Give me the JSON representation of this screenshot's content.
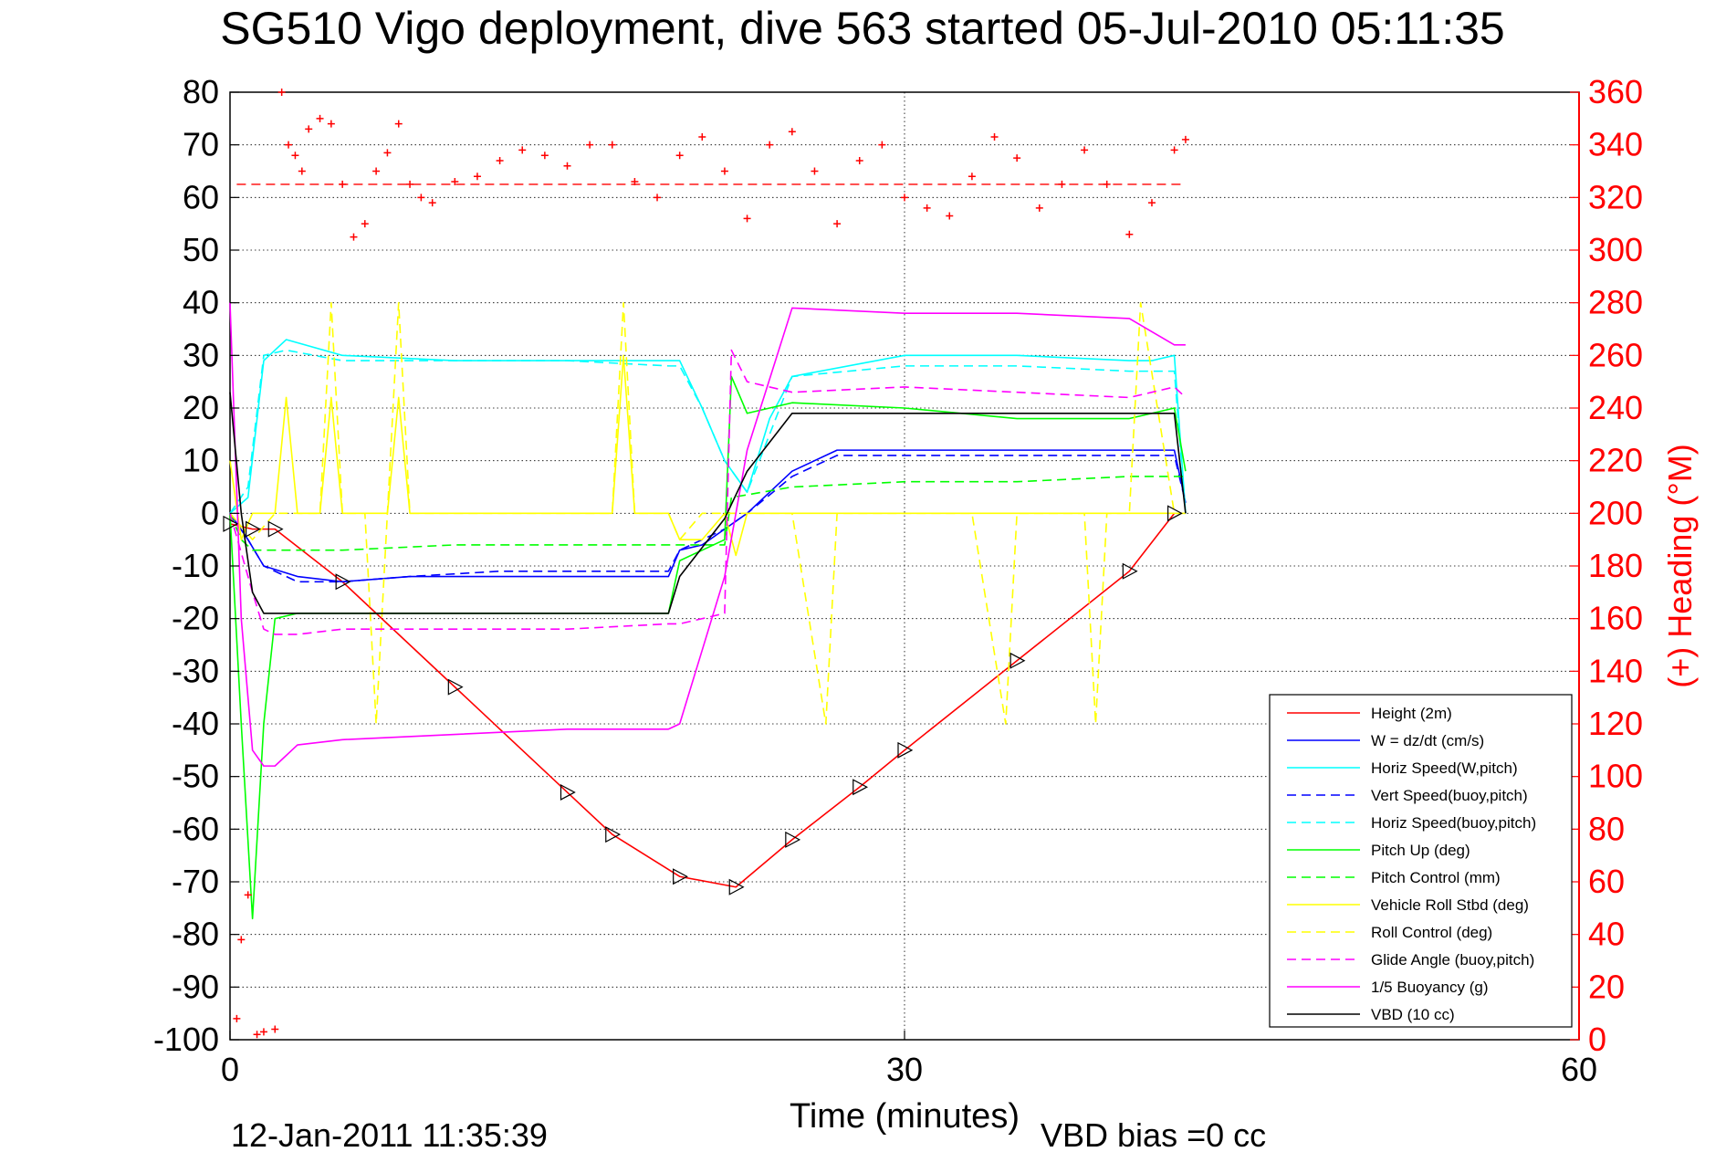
{
  "chart_data": {
    "type": "line",
    "title": "SG510 Vigo deployment, dive 563 started 05-Jul-2010 05:11:35",
    "xlabel": "Time (minutes)",
    "ylabel_right": "(+) Heading (°M)",
    "footer_date": "12-Jan-2011 11:35:39",
    "footer_bias": "VBD bias =0 cc",
    "xlim": [
      0,
      60
    ],
    "ylim_left": [
      -100,
      80
    ],
    "ylim_right": [
      0,
      360
    ],
    "xticks": [
      0,
      30,
      60
    ],
    "yticks_left": [
      80,
      70,
      60,
      50,
      40,
      30,
      20,
      10,
      0,
      -10,
      -20,
      -30,
      -40,
      -50,
      -60,
      -70,
      -80,
      -90,
      -100
    ],
    "yticks_right": [
      360,
      340,
      320,
      300,
      280,
      260,
      240,
      220,
      200,
      180,
      160,
      140,
      120,
      100,
      80,
      60,
      40,
      20,
      0
    ],
    "grid": true,
    "legend_position": "bottom-right",
    "colors": {
      "red": "#ff0000",
      "blue": "#0000ff",
      "cyan": "#00ffff",
      "green": "#00ff00",
      "yellow": "#ffff00",
      "magenta": "#ff00ff",
      "black": "#000000"
    },
    "series": [
      {
        "name": "Height (2m)",
        "color": "#ff0000",
        "dash": false,
        "marker": "triangle",
        "x": [
          0,
          1,
          2,
          5,
          10,
          15,
          17,
          20,
          22.5,
          25,
          28,
          30,
          35,
          40,
          42
        ],
        "y": [
          -2,
          -3,
          -3,
          -13,
          -33,
          -53,
          -61,
          -69,
          -71,
          -62,
          -52,
          -45,
          -28,
          -11,
          0
        ]
      },
      {
        "name": "W = dz/dt (cm/s)",
        "color": "#0000ff",
        "dash": false,
        "x": [
          0,
          0.8,
          1.5,
          3,
          5,
          8,
          12,
          16,
          19.5,
          20,
          21,
          22,
          23,
          25,
          27,
          30,
          33,
          37,
          41,
          42,
          42.5
        ],
        "y": [
          0,
          -5,
          -10,
          -12,
          -13,
          -12,
          -12,
          -12,
          -12,
          -7,
          -6,
          -3,
          0,
          8,
          12,
          12,
          12,
          12,
          12,
          12,
          2
        ]
      },
      {
        "name": "Horiz Speed(W,pitch)",
        "color": "#00ffff",
        "dash": false,
        "x": [
          0,
          0.8,
          1.5,
          2.5,
          5,
          10,
          15,
          19.5,
          20,
          21,
          22,
          23,
          24,
          25,
          30,
          35,
          40,
          41,
          42,
          42.5
        ],
        "y": [
          0,
          3,
          29,
          33,
          30,
          29,
          29,
          29,
          29,
          20,
          10,
          4,
          18,
          26,
          30,
          30,
          29,
          29,
          30,
          0
        ]
      },
      {
        "name": "Vert Speed(buoy,pitch)",
        "color": "#0000ff",
        "dash": true,
        "x": [
          0,
          0.8,
          1.5,
          3,
          5,
          8,
          12,
          16,
          19.5,
          20,
          21,
          22,
          23,
          25,
          27,
          30,
          33,
          37,
          41,
          42,
          42.5
        ],
        "y": [
          0,
          -5,
          -10,
          -13,
          -13,
          -12,
          -11,
          -11,
          -11,
          -7,
          -5,
          -3,
          0,
          7,
          11,
          11,
          11,
          11,
          11,
          11,
          2
        ]
      },
      {
        "name": "Horiz Speed(buoy,pitch)",
        "color": "#00ffff",
        "dash": true,
        "x": [
          0,
          0.8,
          1.5,
          2.5,
          5,
          10,
          15,
          19.5,
          20,
          21,
          22,
          23,
          24,
          25,
          30,
          35,
          40,
          41,
          42,
          42.5
        ],
        "y": [
          0,
          5,
          30,
          31,
          29,
          29,
          29,
          28,
          28,
          20,
          10,
          4,
          15,
          26,
          28,
          28,
          27,
          27,
          27,
          0
        ]
      },
      {
        "name": "Pitch Up (deg)",
        "color": "#00ff00",
        "dash": false,
        "x": [
          0,
          0.5,
          1,
          1.5,
          2,
          3,
          5,
          10,
          15,
          19.5,
          20,
          22,
          22.3,
          23,
          25,
          30,
          35,
          40,
          42,
          42.5
        ],
        "y": [
          0,
          -40,
          -77,
          -40,
          -20,
          -19,
          -19,
          -19,
          -19,
          -19,
          -9,
          -5,
          26,
          19,
          21,
          20,
          18,
          18,
          20,
          8
        ]
      },
      {
        "name": "Pitch Control (mm)",
        "color": "#00ff00",
        "dash": true,
        "x": [
          0,
          0.5,
          1,
          1.5,
          2,
          3,
          5,
          10,
          15,
          19.5,
          20,
          22,
          22.3,
          25,
          30,
          35,
          40,
          42,
          42.5
        ],
        "y": [
          0,
          -5,
          -7,
          -7,
          -7,
          -7,
          -7,
          -6,
          -6,
          -6,
          -6,
          -6,
          3,
          5,
          6,
          6,
          7,
          7,
          7
        ]
      },
      {
        "name": "Vehicle Roll Stbd (deg)",
        "color": "#ffff00",
        "dash": false,
        "x": [
          0,
          0.5,
          1,
          2,
          2.5,
          3,
          4,
          4.5,
          5,
          7,
          7.5,
          8,
          16,
          17,
          17.5,
          18,
          19.5,
          20,
          21,
          22,
          22.5,
          23,
          25,
          30,
          35,
          40,
          42,
          42.5
        ],
        "y": [
          10,
          -5,
          0,
          0,
          22,
          0,
          0,
          22,
          0,
          0,
          22,
          0,
          0,
          0,
          30,
          0,
          0,
          -5,
          -5,
          0,
          -8,
          0,
          0,
          0,
          0,
          0,
          0,
          0
        ]
      },
      {
        "name": "Roll Control (deg)",
        "color": "#ffff00",
        "dash": true,
        "x": [
          0,
          1,
          2,
          3,
          4,
          4.5,
          5,
          6,
          6.5,
          7,
          7.5,
          8,
          16,
          17,
          17.5,
          18,
          19.5,
          20,
          21,
          25,
          26.5,
          27,
          30,
          33,
          34.5,
          35,
          38,
          38.5,
          39,
          40,
          40.5,
          42,
          42.5
        ],
        "y": [
          0,
          -5,
          0,
          0,
          0,
          40,
          0,
          0,
          -40,
          0,
          40,
          0,
          0,
          0,
          40,
          0,
          0,
          -5,
          0,
          0,
          -40,
          0,
          0,
          0,
          -40,
          0,
          0,
          -40,
          0,
          0,
          40,
          0,
          0
        ]
      },
      {
        "name": "Glide Angle (buoy,pitch)",
        "color": "#ff00ff",
        "dash": true,
        "x": [
          0,
          1,
          1.5,
          2,
          3,
          5,
          10,
          15,
          19.5,
          20,
          22,
          22.3,
          23,
          25,
          30,
          35,
          40,
          42,
          42.5
        ],
        "y": [
          0,
          -15,
          -22,
          -23,
          -23,
          -22,
          -22,
          -22,
          -21,
          -21,
          -19,
          31,
          25,
          23,
          24,
          23,
          22,
          24,
          22
        ]
      },
      {
        "name": "1/5 Buoyancy (g)",
        "color": "#ff00ff",
        "dash": false,
        "x": [
          0,
          0.5,
          1,
          1.5,
          2,
          3,
          5,
          10,
          15,
          19.5,
          20,
          22,
          23,
          25,
          30,
          35,
          40,
          42,
          42.5
        ],
        "y": [
          40,
          -20,
          -45,
          -48,
          -48,
          -44,
          -43,
          -42,
          -41,
          -41,
          -40,
          -12,
          12,
          39,
          38,
          38,
          37,
          32,
          32
        ]
      },
      {
        "name": "VBD (10 cc)",
        "color": "#000000",
        "dash": false,
        "x": [
          0,
          0.5,
          1,
          1.5,
          2,
          5,
          10,
          15,
          19.5,
          20,
          22,
          23,
          25,
          30,
          35,
          40,
          42,
          42.5
        ],
        "y": [
          23,
          0,
          -15,
          -19,
          -19,
          -19,
          -19,
          -19,
          -19,
          -12,
          -1,
          8,
          19,
          19,
          19,
          19,
          19,
          0
        ]
      }
    ],
    "heading": {
      "axis": "right",
      "color": "#ff0000",
      "marker": "+",
      "mean": 325,
      "x": [
        0.3,
        0.5,
        0.8,
        1.2,
        1.5,
        2,
        2.3,
        2.6,
        2.9,
        3.2,
        3.5,
        4,
        4.5,
        5,
        5.5,
        6,
        6.5,
        7,
        7.5,
        8,
        8.5,
        9,
        10,
        11,
        12,
        13,
        14,
        15,
        16,
        17,
        18,
        19,
        20,
        21,
        22,
        23,
        24,
        25,
        26,
        27,
        28,
        29,
        30,
        31,
        32,
        33,
        34,
        35,
        36,
        37,
        38,
        39,
        40,
        41,
        42,
        42.5
      ],
      "y": [
        8,
        38,
        55,
        2,
        3,
        4,
        360,
        340,
        336,
        330,
        346,
        350,
        348,
        325,
        305,
        310,
        330,
        337,
        348,
        325,
        320,
        318,
        326,
        328,
        334,
        338,
        336,
        332,
        340,
        340,
        326,
        320,
        336,
        343,
        330,
        312,
        340,
        345,
        330,
        310,
        334,
        340,
        320,
        316,
        313,
        328,
        343,
        335,
        316,
        325,
        338,
        325,
        306,
        318,
        338,
        342
      ]
    }
  }
}
